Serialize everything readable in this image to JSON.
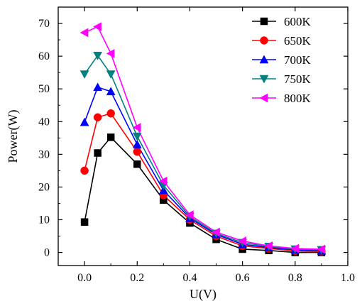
{
  "chart_data": {
    "type": "line",
    "xlabel": "U(V)",
    "ylabel": "Power(W)",
    "xlim": [
      -0.1,
      1.0
    ],
    "ylim": [
      -4,
      75
    ],
    "xticks": [
      "0.0",
      "0.2",
      "0.4",
      "0.6",
      "0.8",
      "1.0"
    ],
    "yticks": [
      "0",
      "10",
      "20",
      "30",
      "40",
      "50",
      "60",
      "70"
    ],
    "legend_position": "top-right",
    "grid": false,
    "series": [
      {
        "name": "600K",
        "color": "#000000",
        "marker": "square",
        "x": [
          0.0,
          0.05,
          0.1,
          0.2,
          0.3,
          0.4,
          0.5,
          0.6,
          0.7,
          0.8,
          0.9
        ],
        "y": [
          9.3,
          30.4,
          35.2,
          27.0,
          16.0,
          9.0,
          4.0,
          1.0,
          0.6,
          0.0,
          0.0
        ]
      },
      {
        "name": "650K",
        "color": "#ff0000",
        "marker": "circle",
        "x": [
          0.0,
          0.05,
          0.1,
          0.2,
          0.3,
          0.4,
          0.5,
          0.6,
          0.7,
          0.8,
          0.9
        ],
        "y": [
          25.0,
          41.3,
          42.5,
          30.8,
          17.5,
          10.0,
          5.0,
          2.0,
          1.2,
          0.5,
          0.3
        ]
      },
      {
        "name": "700K",
        "color": "#0000ff",
        "marker": "triangle-up",
        "x": [
          0.0,
          0.05,
          0.1,
          0.2,
          0.3,
          0.4,
          0.5,
          0.6,
          0.7,
          0.8,
          0.9
        ],
        "y": [
          39.8,
          50.5,
          49.2,
          33.0,
          19.0,
          10.5,
          5.5,
          2.5,
          1.5,
          0.8,
          0.5
        ]
      },
      {
        "name": "750K",
        "color": "#008080",
        "marker": "triangle-down",
        "x": [
          0.0,
          0.05,
          0.1,
          0.2,
          0.3,
          0.4,
          0.5,
          0.6,
          0.7,
          0.8,
          0.9
        ],
        "y": [
          54.5,
          60.2,
          54.5,
          35.5,
          20.5,
          11.0,
          5.8,
          3.0,
          1.8,
          1.0,
          0.8
        ]
      },
      {
        "name": "800K",
        "color": "#ff00ff",
        "marker": "triangle-left",
        "x": [
          0.0,
          0.05,
          0.1,
          0.2,
          0.3,
          0.4,
          0.5,
          0.6,
          0.7,
          0.8,
          0.9
        ],
        "y": [
          67.2,
          69.0,
          60.8,
          38.2,
          21.8,
          11.5,
          6.2,
          3.5,
          2.0,
          1.2,
          1.0
        ]
      }
    ]
  }
}
